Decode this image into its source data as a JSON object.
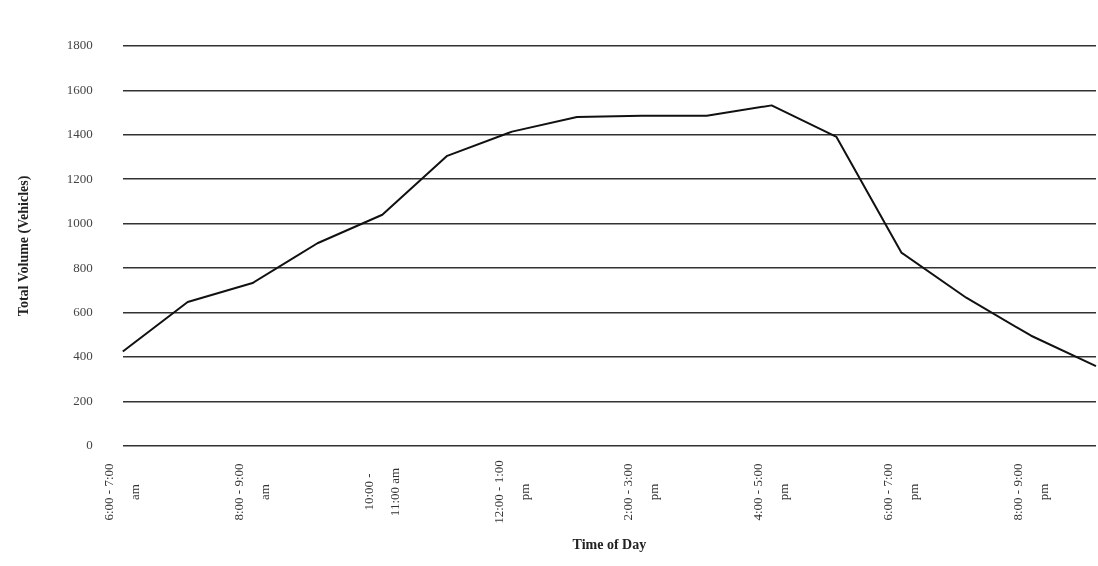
{
  "chart_data": {
    "type": "line",
    "xlabel": "Time of Day",
    "ylabel": "Total Volume (Vehicles)",
    "categories": [
      "6:00 - 7:00 am",
      null,
      "8:00 - 9:00 am",
      null,
      "10:00 - 11:00 am",
      null,
      "12:00 - 1:00 pm",
      null,
      "2:00 - 3:00 pm",
      null,
      "4:00 - 5:00 pm",
      null,
      "6:00 - 7:00 pm",
      null,
      "8:00 - 9:00 pm",
      null
    ],
    "series": [
      {
        "color": "#111111",
        "values": [
          425,
          648,
          733,
          912,
          1040,
          1305,
          1414,
          1480,
          1485,
          1485,
          1532,
          1390,
          870,
          667,
          496,
          359
        ]
      }
    ],
    "ylim": [
      0,
      1800
    ],
    "yticks": [
      0,
      200,
      400,
      600,
      800,
      1000,
      1200,
      1400,
      1600,
      1800
    ],
    "grid": "y",
    "legend": false,
    "marker": "none",
    "line_style": "solid"
  }
}
